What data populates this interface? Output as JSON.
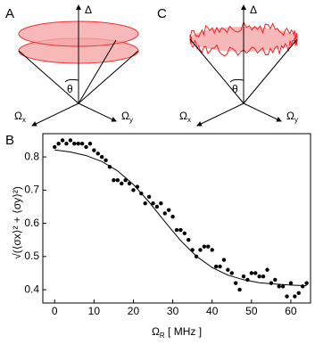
{
  "diagrams": [
    {
      "label": "A",
      "z_axis": "Δ",
      "x_axis": {
        "base": "Ω",
        "sub": "x"
      },
      "y_axis": {
        "base": "Ω",
        "sub": "y"
      },
      "angle": "θ"
    },
    {
      "label": "C",
      "z_axis": "Δ",
      "x_axis": {
        "base": "Ω",
        "sub": "x"
      },
      "y_axis": {
        "base": "Ω",
        "sub": "y"
      },
      "angle": "θ"
    }
  ],
  "chart_data": {
    "type": "scatter",
    "label": "B",
    "x_label": {
      "base": "Ω",
      "sub": "R",
      "rest": " [ MHz ]"
    },
    "y_label": "√(⟨σx⟩² + ⟨σy⟩²)",
    "xlim": [
      -3,
      65
    ],
    "ylim": [
      0.36,
      0.87
    ],
    "xticks": [
      0,
      10,
      20,
      30,
      40,
      50,
      60
    ],
    "yticks": [
      0.4,
      0.5,
      0.6,
      0.7,
      0.8
    ],
    "series": [
      {
        "type": "scatter",
        "color": "#000000",
        "x": [
          0,
          1,
          2,
          3,
          4,
          5,
          6,
          7,
          8,
          9,
          10,
          11,
          12,
          13,
          14,
          15,
          16,
          17,
          18,
          19,
          20,
          21,
          22,
          23,
          24,
          25,
          26,
          27,
          28,
          29,
          30,
          31,
          32,
          33,
          34,
          35,
          36,
          37,
          38,
          39,
          40,
          41,
          42,
          43,
          44,
          45,
          46,
          47,
          48,
          49,
          50,
          51,
          52,
          53,
          54,
          55,
          56,
          57,
          58,
          59,
          60,
          61,
          62,
          63,
          64
        ],
        "values": [
          0.83,
          0.84,
          0.85,
          0.84,
          0.85,
          0.84,
          0.84,
          0.84,
          0.83,
          0.84,
          0.82,
          0.81,
          0.8,
          0.79,
          0.77,
          0.73,
          0.73,
          0.72,
          0.73,
          0.72,
          0.7,
          0.71,
          0.69,
          0.66,
          0.68,
          0.66,
          0.65,
          0.66,
          0.63,
          0.64,
          0.62,
          0.58,
          0.58,
          0.57,
          0.55,
          0.52,
          0.5,
          0.52,
          0.53,
          0.53,
          0.52,
          0.47,
          0.47,
          0.49,
          0.46,
          0.45,
          0.42,
          0.4,
          0.44,
          0.43,
          0.45,
          0.45,
          0.44,
          0.44,
          0.46,
          0.42,
          0.43,
          0.41,
          0.41,
          0.38,
          0.42,
          0.38,
          0.39,
          0.41,
          0.42
        ]
      },
      {
        "type": "line",
        "color": "#000000",
        "x": [
          0,
          4,
          8,
          12,
          16,
          20,
          24,
          28,
          32,
          36,
          40,
          44,
          48,
          52,
          56,
          60,
          64
        ],
        "values": [
          0.821,
          0.815,
          0.804,
          0.786,
          0.758,
          0.717,
          0.664,
          0.605,
          0.548,
          0.501,
          0.467,
          0.444,
          0.43,
          0.421,
          0.417,
          0.414,
          0.412
        ]
      }
    ]
  }
}
